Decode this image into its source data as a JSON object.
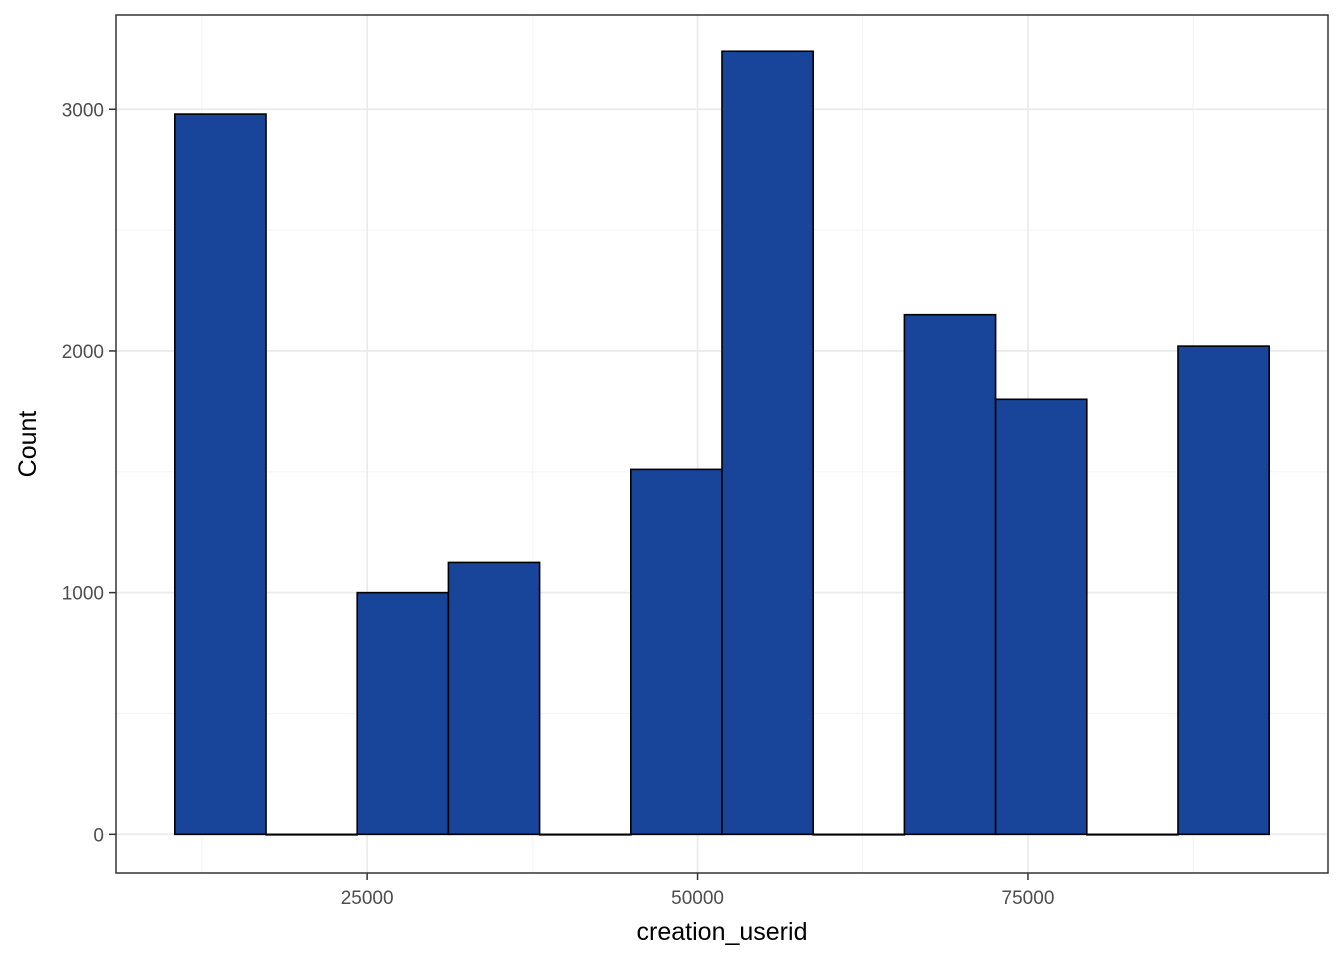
{
  "chart_data": {
    "type": "bar",
    "subtype": "histogram",
    "xlabel": "creation_userid",
    "ylabel": "Count",
    "xlim": [
      6000,
      97700
    ],
    "ylim": [
      -160,
      3390
    ],
    "x_ticks": [
      25000,
      50000,
      75000
    ],
    "x_tick_labels": [
      "25000",
      "50000",
      "75000"
    ],
    "x_minor_ticks": [
      12500,
      37500,
      62500,
      87500
    ],
    "y_ticks": [
      0,
      1000,
      2000,
      3000
    ],
    "y_tick_labels": [
      "0",
      "1000",
      "2000",
      "3000"
    ],
    "y_minor_ticks": [
      500,
      1500,
      2500
    ],
    "grid": true,
    "legend": "none",
    "bin_width": 6900,
    "bins": [
      {
        "x0": 10450,
        "x1": 17350,
        "count": 2980
      },
      {
        "x0": 17350,
        "x1": 24250,
        "count": 0
      },
      {
        "x0": 24250,
        "x1": 31150,
        "count": 1000
      },
      {
        "x0": 31150,
        "x1": 38050,
        "count": 1125
      },
      {
        "x0": 38050,
        "x1": 44950,
        "count": 0
      },
      {
        "x0": 44950,
        "x1": 51850,
        "count": 1510
      },
      {
        "x0": 51850,
        "x1": 58750,
        "count": 3240
      },
      {
        "x0": 58750,
        "x1": 65650,
        "count": 0
      },
      {
        "x0": 65650,
        "x1": 72550,
        "count": 2150
      },
      {
        "x0": 72550,
        "x1": 79450,
        "count": 1800
      },
      {
        "x0": 79450,
        "x1": 86350,
        "count": 0
      },
      {
        "x0": 86350,
        "x1": 93250,
        "count": 2020
      }
    ],
    "colors": {
      "bar_fill": "#18449A",
      "bar_outline": "#000000",
      "grid_major": "#EBEBEB",
      "grid_minor": "#F5F5F5",
      "panel_border": "#333333"
    }
  }
}
